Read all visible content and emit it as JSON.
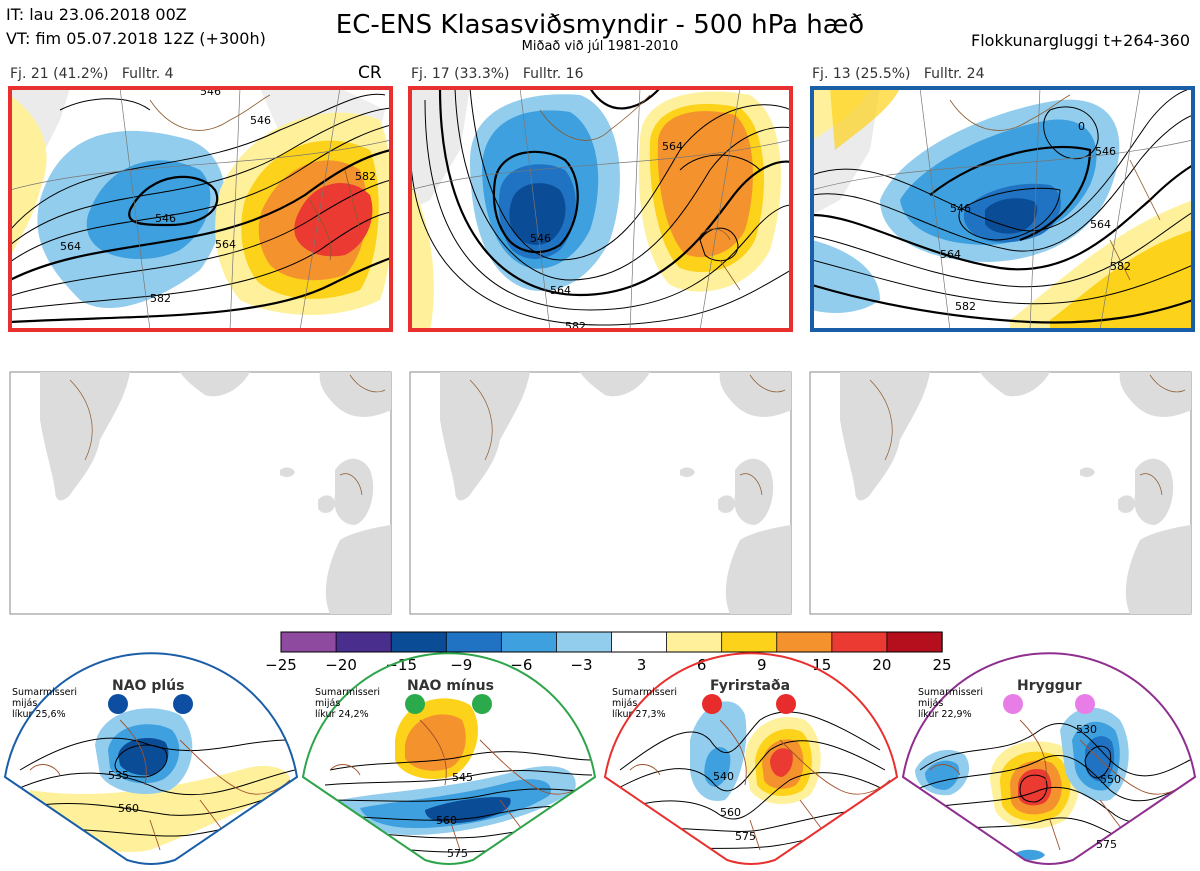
{
  "header": {
    "it_line": "IT: lau 23.06.2018 00Z",
    "vt_line": "VT: fim 05.07.2018 12Z  (+300h)",
    "title": "EC-ENS Klasasviðsmyndir - 500 hPa hæð",
    "subtitle": "Miðað við júl 1981-2010",
    "window": "Flokkunargluggi t+264-360"
  },
  "clusters": [
    {
      "label": "Fj. 21 (41.2%)",
      "rep": "Fulltr. 4",
      "frame_color": "#e8302e",
      "extra": "CR",
      "contours": [
        "546",
        "546",
        "564",
        "564",
        "582",
        "582",
        "546"
      ]
    },
    {
      "label": "Fj. 17 (33.3%)",
      "rep": "Fulltr. 16",
      "frame_color": "#e8302e",
      "contours": [
        "546",
        "564",
        "564",
        "582"
      ]
    },
    {
      "label": "Fj. 13 (25.5%)",
      "rep": "Fulltr. 24",
      "frame_color": "#1a5ea8",
      "contours": [
        "0",
        "546",
        "546",
        "564",
        "564",
        "582",
        "582"
      ]
    }
  ],
  "colorbar": {
    "labels": [
      "−25",
      "−20",
      "−15",
      "−9",
      "−6",
      "−3",
      "3",
      "6",
      "9",
      "15",
      "20",
      "25"
    ],
    "colors": [
      "#8e4a9e",
      "#4a2e8e",
      "#0b4c96",
      "#1f73c2",
      "#3ea0de",
      "#93cdee",
      "#ffffff",
      "#fff19b",
      "#fdd21a",
      "#f4922e",
      "#ea3a32",
      "#b50f1d"
    ]
  },
  "regimes": [
    {
      "name": "NAO plús",
      "note": [
        "Sumarmisseri",
        "mijás",
        "líkur 25,6%"
      ],
      "dot_color": "#0d4ea2",
      "frame_color": "#1a5ea8",
      "contours": [
        "535",
        "560"
      ]
    },
    {
      "name": "NAO mínus",
      "note": [
        "Sumarmisseri",
        "mijás",
        "líkur 24,2%"
      ],
      "dot_color": "#2aaa4a",
      "frame_color": "#2ea44a",
      "contours": [
        "545",
        "560",
        "575"
      ]
    },
    {
      "name": "Fyrirstaða",
      "note": [
        "Sumarmisseri",
        "mijás",
        "líkur 27,3%"
      ],
      "dot_color": "#e82b2b",
      "frame_color": "#e8302e",
      "contours": [
        "540",
        "560",
        "575"
      ]
    },
    {
      "name": "Hryggur",
      "note": [
        "Sumarmisseri",
        "mijás",
        "líkur 22,9%"
      ],
      "dot_color": "#e87de8",
      "frame_color": "#8e2e8e",
      "contours": [
        "530",
        "550",
        "575"
      ]
    }
  ]
}
